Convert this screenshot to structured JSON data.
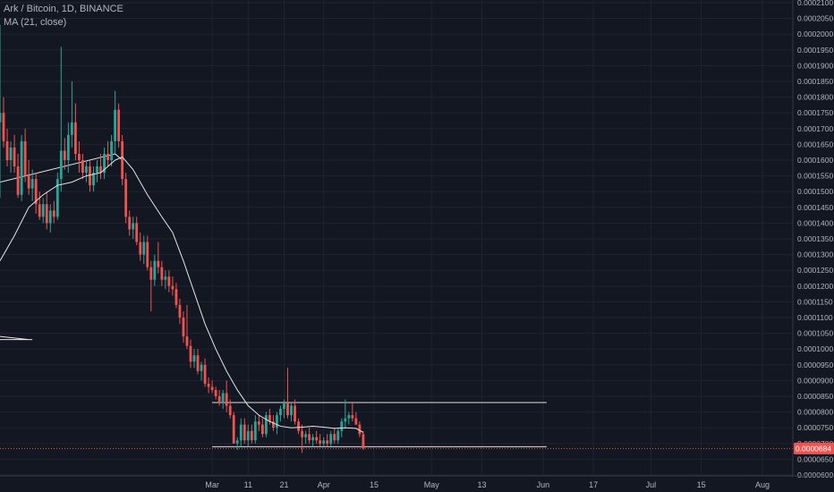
{
  "legend": {
    "symbol_line": "Ark / Bitcoin, 1D, BINANCE",
    "ma_line": "MA (21, close)"
  },
  "colors": {
    "background": "#131722",
    "up": "#26a69a",
    "down": "#ef5350",
    "ma": "#e6e6e6",
    "grid": "#1f2433",
    "axis_text": "#b2b5be",
    "price_tag": "#ef5350"
  },
  "chart_data": {
    "type": "candlestick",
    "title": "Ark / Bitcoin, 1D, BINANCE",
    "xlabel": "",
    "ylabel": "",
    "ylim": [
      6e-05,
      0.00021
    ],
    "y_ticks": [
      "0.0000600",
      "0.0000650",
      "0.0000700",
      "0.0000750",
      "0.0000800",
      "0.0000850",
      "0.0000900",
      "0.0000950",
      "0.0001000",
      "0.0001050",
      "0.0001100",
      "0.0001150",
      "0.0001200",
      "0.0001250",
      "0.0001300",
      "0.0001350",
      "0.0001400",
      "0.0001450",
      "0.0001500",
      "0.0001550",
      "0.0001600",
      "0.0001650",
      "0.0001700",
      "0.0001750",
      "0.0001800",
      "0.0001850",
      "0.0001900",
      "0.0001950",
      "0.0002000",
      "0.0002050",
      "0.0002100"
    ],
    "x_ticks": [
      "Mar",
      "11",
      "21",
      "Apr",
      "15",
      "May",
      "13",
      "Jun",
      "17",
      "Jul",
      "15",
      "Aug"
    ],
    "xlim_days": [
      -45,
      169
    ],
    "tick_days": [
      14,
      24,
      34,
      45,
      59,
      75,
      89,
      106,
      120,
      136,
      150,
      167
    ],
    "grid": true,
    "legend_position": "top-left",
    "current_price": "0.0000684",
    "candles": [
      {
        "day": -45,
        "o": 0.000172,
        "h": 0.000203,
        "l": 0.000148,
        "c": 0.000175
      },
      {
        "day": -44,
        "o": 0.000175,
        "h": 0.00018,
        "l": 0.000164,
        "c": 0.000166
      },
      {
        "day": -43,
        "o": 0.000166,
        "h": 0.00017,
        "l": 0.000158,
        "c": 0.00016
      },
      {
        "day": -42,
        "o": 0.00016,
        "h": 0.000166,
        "l": 0.000156,
        "c": 0.000164
      },
      {
        "day": -41,
        "o": 0.000164,
        "h": 0.000168,
        "l": 0.000156,
        "c": 0.000158
      },
      {
        "day": -40,
        "o": 0.000158,
        "h": 0.000162,
        "l": 0.000148,
        "c": 0.000149
      },
      {
        "day": -39,
        "o": 0.000149,
        "h": 0.000168,
        "l": 0.000147,
        "c": 0.000166
      },
      {
        "day": -38,
        "o": 0.000166,
        "h": 0.00017,
        "l": 0.000153,
        "c": 0.000155
      },
      {
        "day": -37,
        "o": 0.000155,
        "h": 0.00016,
        "l": 0.000149,
        "c": 0.000151
      },
      {
        "day": -36,
        "o": 0.000151,
        "h": 0.000157,
        "l": 0.000147,
        "c": 0.000154
      },
      {
        "day": -35,
        "o": 0.000154,
        "h": 0.000156,
        "l": 0.000143,
        "c": 0.000146
      },
      {
        "day": -34,
        "o": 0.000146,
        "h": 0.00015,
        "l": 0.000141,
        "c": 0.000142
      },
      {
        "day": -33,
        "o": 0.000142,
        "h": 0.000148,
        "l": 0.00014,
        "c": 0.000146
      },
      {
        "day": -32,
        "o": 0.000146,
        "h": 0.00015,
        "l": 0.000138,
        "c": 0.00014
      },
      {
        "day": -31,
        "o": 0.00014,
        "h": 0.000146,
        "l": 0.000137,
        "c": 0.000144
      },
      {
        "day": -30,
        "o": 0.000144,
        "h": 0.000147,
        "l": 0.00014,
        "c": 0.000142
      },
      {
        "day": -29,
        "o": 0.000142,
        "h": 0.000156,
        "l": 0.000141,
        "c": 0.000154
      },
      {
        "day": -28,
        "o": 0.000154,
        "h": 0.000196,
        "l": 0.00015,
        "c": 0.000163
      },
      {
        "day": -27,
        "o": 0.000163,
        "h": 0.000167,
        "l": 0.000157,
        "c": 0.00016
      },
      {
        "day": -26,
        "o": 0.00016,
        "h": 0.000172,
        "l": 0.000156,
        "c": 0.000168
      },
      {
        "day": -25,
        "o": 0.000168,
        "h": 0.000185,
        "l": 0.000164,
        "c": 0.000172
      },
      {
        "day": -24,
        "o": 0.000172,
        "h": 0.000178,
        "l": 0.00016,
        "c": 0.000162
      },
      {
        "day": -23,
        "o": 0.000162,
        "h": 0.000166,
        "l": 0.000156,
        "c": 0.00016
      },
      {
        "day": -22,
        "o": 0.00016,
        "h": 0.000162,
        "l": 0.000154,
        "c": 0.000156
      },
      {
        "day": -21,
        "o": 0.000156,
        "h": 0.00016,
        "l": 0.000153,
        "c": 0.000158
      },
      {
        "day": -20,
        "o": 0.000158,
        "h": 0.00016,
        "l": 0.00015,
        "c": 0.000152
      },
      {
        "day": -19,
        "o": 0.000152,
        "h": 0.000158,
        "l": 0.00015,
        "c": 0.000156
      },
      {
        "day": -18,
        "o": 0.000156,
        "h": 0.00016,
        "l": 0.000153,
        "c": 0.000158
      },
      {
        "day": -17,
        "o": 0.000158,
        "h": 0.000162,
        "l": 0.000154,
        "c": 0.000156
      },
      {
        "day": -16,
        "o": 0.000156,
        "h": 0.000164,
        "l": 0.000154,
        "c": 0.000162
      },
      {
        "day": -15,
        "o": 0.000162,
        "h": 0.000166,
        "l": 0.000158,
        "c": 0.00016
      },
      {
        "day": -14,
        "o": 0.00016,
        "h": 0.000168,
        "l": 0.000158,
        "c": 0.000166
      },
      {
        "day": -13,
        "o": 0.000166,
        "h": 0.000182,
        "l": 0.000162,
        "c": 0.000176
      },
      {
        "day": -12,
        "o": 0.000176,
        "h": 0.000178,
        "l": 0.000164,
        "c": 0.000166
      },
      {
        "day": -11,
        "o": 0.000166,
        "h": 0.000168,
        "l": 0.000152,
        "c": 0.000154
      },
      {
        "day": -10,
        "o": 0.000154,
        "h": 0.000156,
        "l": 0.00014,
        "c": 0.000142
      },
      {
        "day": -9,
        "o": 0.000142,
        "h": 0.000144,
        "l": 0.000136,
        "c": 0.000138
      },
      {
        "day": -8,
        "o": 0.000138,
        "h": 0.000142,
        "l": 0.000135,
        "c": 0.00014
      },
      {
        "day": -7,
        "o": 0.00014,
        "h": 0.000142,
        "l": 0.000133,
        "c": 0.000134
      },
      {
        "day": -6,
        "o": 0.000134,
        "h": 0.000137,
        "l": 0.000128,
        "c": 0.00013
      },
      {
        "day": -5,
        "o": 0.00013,
        "h": 0.000136,
        "l": 0.000127,
        "c": 0.000134
      },
      {
        "day": -4,
        "o": 0.000134,
        "h": 0.000136,
        "l": 0.000125,
        "c": 0.000126
      },
      {
        "day": -3,
        "o": 0.000126,
        "h": 0.000128,
        "l": 0.000112,
        "c": 0.000122
      },
      {
        "day": -2,
        "o": 0.000122,
        "h": 0.00013,
        "l": 0.00012,
        "c": 0.000128
      },
      {
        "day": -1,
        "o": 0.000128,
        "h": 0.000134,
        "l": 0.000124,
        "c": 0.000126
      },
      {
        "day": 0,
        "o": 0.000126,
        "h": 0.000128,
        "l": 0.00012,
        "c": 0.000122
      },
      {
        "day": 1,
        "o": 0.000122,
        "h": 0.000125,
        "l": 0.000119,
        "c": 0.000123
      },
      {
        "day": 2,
        "o": 0.000123,
        "h": 0.000125,
        "l": 0.000118,
        "c": 0.00012
      },
      {
        "day": 3,
        "o": 0.00012,
        "h": 0.000123,
        "l": 0.000117,
        "c": 0.000119
      },
      {
        "day": 4,
        "o": 0.000119,
        "h": 0.000121,
        "l": 0.000113,
        "c": 0.000114
      },
      {
        "day": 5,
        "o": 0.000114,
        "h": 0.000116,
        "l": 0.000108,
        "c": 0.00011
      },
      {
        "day": 6,
        "o": 0.00011,
        "h": 0.000112,
        "l": 0.000102,
        "c": 0.000104
      },
      {
        "day": 7,
        "o": 0.000104,
        "h": 0.000114,
        "l": 0.0001,
        "c": 0.000101
      },
      {
        "day": 8,
        "o": 0.000101,
        "h": 0.000103,
        "l": 9.4e-05,
        "c": 9.6e-05
      },
      {
        "day": 9,
        "o": 9.6e-05,
        "h": 0.0001,
        "l": 9.4e-05,
        "c": 9.8e-05
      },
      {
        "day": 10,
        "o": 9.8e-05,
        "h": 0.0001,
        "l": 9.2e-05,
        "c": 9.3e-05
      },
      {
        "day": 11,
        "o": 9.3e-05,
        "h": 9.6e-05,
        "l": 9e-05,
        "c": 9.5e-05
      },
      {
        "day": 12,
        "o": 9.5e-05,
        "h": 9.7e-05,
        "l": 8.8e-05,
        "c": 8.9e-05
      },
      {
        "day": 13,
        "o": 8.9e-05,
        "h": 9.1e-05,
        "l": 8.6e-05,
        "c": 8.8e-05
      },
      {
        "day": 14,
        "o": 8.8e-05,
        "h": 9e-05,
        "l": 8.6e-05,
        "c": 8.7e-05
      },
      {
        "day": 15,
        "o": 8.7e-05,
        "h": 8.8e-05,
        "l": 8.4e-05,
        "c": 8.5e-05
      },
      {
        "day": 16,
        "o": 8.5e-05,
        "h": 8.7e-05,
        "l": 8.2e-05,
        "c": 8.3e-05
      },
      {
        "day": 17,
        "o": 8.3e-05,
        "h": 8.7e-05,
        "l": 8.1e-05,
        "c": 8.6e-05
      },
      {
        "day": 18,
        "o": 8.6e-05,
        "h": 9e-05,
        "l": 8e-05,
        "c": 8.2e-05
      },
      {
        "day": 19,
        "o": 8.2e-05,
        "h": 8.4e-05,
        "l": 7.8e-05,
        "c": 7.9e-05
      },
      {
        "day": 20,
        "o": 7.9e-05,
        "h": 8e-05,
        "l": 7e-05,
        "c": 7e-05
      },
      {
        "day": 21,
        "o": 7e-05,
        "h": 7.2e-05,
        "l": 6.8e-05,
        "c": 7.1e-05
      },
      {
        "day": 22,
        "o": 7.1e-05,
        "h": 7.8e-05,
        "l": 6.9e-05,
        "c": 7.6e-05
      },
      {
        "day": 23,
        "o": 7.6e-05,
        "h": 7.8e-05,
        "l": 7e-05,
        "c": 7.1e-05
      },
      {
        "day": 24,
        "o": 7.1e-05,
        "h": 7.6e-05,
        "l": 6.9e-05,
        "c": 7.4e-05
      },
      {
        "day": 25,
        "o": 7.4e-05,
        "h": 7.6e-05,
        "l": 7e-05,
        "c": 7.1e-05
      },
      {
        "day": 26,
        "o": 7.1e-05,
        "h": 7.9e-05,
        "l": 7e-05,
        "c": 7.7e-05
      },
      {
        "day": 27,
        "o": 7.7e-05,
        "h": 7.9e-05,
        "l": 7.4e-05,
        "c": 7.6e-05
      },
      {
        "day": 28,
        "o": 7.6e-05,
        "h": 7.8e-05,
        "l": 7.2e-05,
        "c": 7.3e-05
      },
      {
        "day": 29,
        "o": 7.3e-05,
        "h": 8e-05,
        "l": 7.2e-05,
        "c": 7.9e-05
      },
      {
        "day": 30,
        "o": 7.9e-05,
        "h": 8.1e-05,
        "l": 7.6e-05,
        "c": 7.7e-05
      },
      {
        "day": 31,
        "o": 7.7e-05,
        "h": 7.9e-05,
        "l": 7.4e-05,
        "c": 7.5e-05
      },
      {
        "day": 32,
        "o": 7.5e-05,
        "h": 8e-05,
        "l": 7.3e-05,
        "c": 7.9e-05
      },
      {
        "day": 33,
        "o": 7.9e-05,
        "h": 8.2e-05,
        "l": 7.7e-05,
        "c": 8.1e-05
      },
      {
        "day": 34,
        "o": 8.1e-05,
        "h": 8.4e-05,
        "l": 7.8e-05,
        "c": 8.3e-05
      },
      {
        "day": 35,
        "o": 8.3e-05,
        "h": 9.4e-05,
        "l": 7.8e-05,
        "c": 7.9e-05
      },
      {
        "day": 36,
        "o": 7.9e-05,
        "h": 8.3e-05,
        "l": 7.7e-05,
        "c": 8.2e-05
      },
      {
        "day": 37,
        "o": 8.2e-05,
        "h": 8.4e-05,
        "l": 7.6e-05,
        "c": 7.7e-05
      },
      {
        "day": 38,
        "o": 7.7e-05,
        "h": 7.8e-05,
        "l": 7.3e-05,
        "c": 7.4e-05
      },
      {
        "day": 39,
        "o": 7.4e-05,
        "h": 7.6e-05,
        "l": 6.7e-05,
        "c": 7.2e-05
      },
      {
        "day": 40,
        "o": 7.2e-05,
        "h": 7.4e-05,
        "l": 7e-05,
        "c": 7.3e-05
      },
      {
        "day": 41,
        "o": 7.3e-05,
        "h": 7.5e-05,
        "l": 7e-05,
        "c": 7.1e-05
      },
      {
        "day": 42,
        "o": 7.1e-05,
        "h": 7.3e-05,
        "l": 6.9e-05,
        "c": 7.2e-05
      },
      {
        "day": 43,
        "o": 7.2e-05,
        "h": 7.4e-05,
        "l": 7e-05,
        "c": 7.1e-05
      },
      {
        "day": 44,
        "o": 7.1e-05,
        "h": 7.3e-05,
        "l": 6.9e-05,
        "c": 7e-05
      },
      {
        "day": 45,
        "o": 7e-05,
        "h": 7.2e-05,
        "l": 6.9e-05,
        "c": 7.1e-05
      },
      {
        "day": 46,
        "o": 7.1e-05,
        "h": 7.3e-05,
        "l": 6.9e-05,
        "c": 7e-05
      },
      {
        "day": 47,
        "o": 7e-05,
        "h": 7.4e-05,
        "l": 6.9e-05,
        "c": 7.3e-05
      },
      {
        "day": 48,
        "o": 7.3e-05,
        "h": 7.5e-05,
        "l": 7e-05,
        "c": 7.1e-05
      },
      {
        "day": 49,
        "o": 7.1e-05,
        "h": 7.5e-05,
        "l": 7e-05,
        "c": 7.4e-05
      },
      {
        "day": 50,
        "o": 7.4e-05,
        "h": 7.8e-05,
        "l": 7.2e-05,
        "c": 7.7e-05
      },
      {
        "day": 51,
        "o": 7.7e-05,
        "h": 8.4e-05,
        "l": 7.5e-05,
        "c": 7.8e-05
      },
      {
        "day": 52,
        "o": 7.8e-05,
        "h": 8e-05,
        "l": 7.6e-05,
        "c": 7.9e-05
      },
      {
        "day": 53,
        "o": 7.9e-05,
        "h": 8.3e-05,
        "l": 7.7e-05,
        "c": 7.8e-05
      },
      {
        "day": 54,
        "o": 7.8e-05,
        "h": 8e-05,
        "l": 7.6e-05,
        "c": 7.6e-05
      },
      {
        "day": 55,
        "o": 7.6e-05,
        "h": 7.7e-05,
        "l": 7.2e-05,
        "c": 7.3e-05
      },
      {
        "day": 56,
        "o": 7.3e-05,
        "h": 7.4e-05,
        "l": 6.8e-05,
        "c": 6.84e-05
      }
    ],
    "ma": {
      "name": "MA (21, close)",
      "points": [
        [
          -45,
          0.000128
        ],
        [
          -41,
          0.000136
        ],
        [
          -37,
          0.000145
        ],
        [
          -33,
          0.000149
        ],
        [
          -29,
          0.000152
        ],
        [
          -25,
          0.000153
        ],
        [
          -21,
          0.000155
        ],
        [
          -17,
          0.000156
        ],
        [
          -13,
          0.00016
        ],
        [
          -11,
          0.000161
        ],
        [
          -8,
          0.000157
        ],
        [
          -4,
          0.000149
        ],
        [
          0,
          0.000142
        ],
        [
          3,
          0.000137
        ],
        [
          6,
          0.000128
        ],
        [
          9,
          0.000118
        ],
        [
          12,
          0.000108
        ],
        [
          15,
          0.0001
        ],
        [
          18,
          9.3e-05
        ],
        [
          21,
          8.7e-05
        ],
        [
          24,
          8.2e-05
        ],
        [
          27,
          7.9e-05
        ],
        [
          30,
          7.7e-05
        ],
        [
          33,
          7.55e-05
        ],
        [
          36,
          7.5e-05
        ],
        [
          39,
          7.52e-05
        ],
        [
          42,
          7.55e-05
        ],
        [
          45,
          7.52e-05
        ],
        [
          48,
          7.48e-05
        ],
        [
          51,
          7.5e-05
        ],
        [
          54,
          7.48e-05
        ],
        [
          56,
          7.35e-05
        ]
      ]
    },
    "hlines": [
      {
        "day_from": 14,
        "day_to": 107,
        "price": 8.3e-05
      },
      {
        "day_from": 14,
        "day_to": 107,
        "price": 6.9e-05
      }
    ],
    "trendlines": [
      {
        "points": [
          [
            -45,
            0.000153
          ],
          [
            -13,
            0.000162
          ],
          [
            -11,
            0.00016
          ]
        ]
      },
      {
        "points": [
          [
            -45,
            0.000104
          ],
          [
            -37,
            0.000103
          ],
          [
            -45,
            0.000103
          ],
          [
            -36,
            0.000103
          ]
        ]
      }
    ]
  }
}
